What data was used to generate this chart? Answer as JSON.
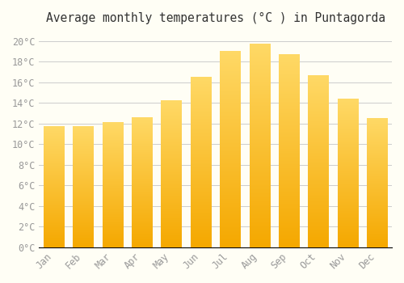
{
  "title": "Average monthly temperatures (°C ) in Puntagorda",
  "months": [
    "Jan",
    "Feb",
    "Mar",
    "Apr",
    "May",
    "Jun",
    "Jul",
    "Aug",
    "Sep",
    "Oct",
    "Nov",
    "Dec"
  ],
  "values": [
    11.7,
    11.7,
    12.1,
    12.6,
    14.2,
    16.5,
    19.0,
    19.7,
    18.7,
    16.7,
    14.4,
    12.5
  ],
  "bar_color_top": "#F5A800",
  "bar_color_bottom": "#FFD966",
  "ylim": [
    0,
    21
  ],
  "yticks": [
    0,
    2,
    4,
    6,
    8,
    10,
    12,
    14,
    16,
    18,
    20
  ],
  "background_color": "#FFFEF5",
  "grid_color": "#CCCCCC",
  "title_fontsize": 10.5,
  "tick_fontsize": 8.5,
  "tick_color": "#999999",
  "font_family": "monospace",
  "bar_width": 0.7
}
